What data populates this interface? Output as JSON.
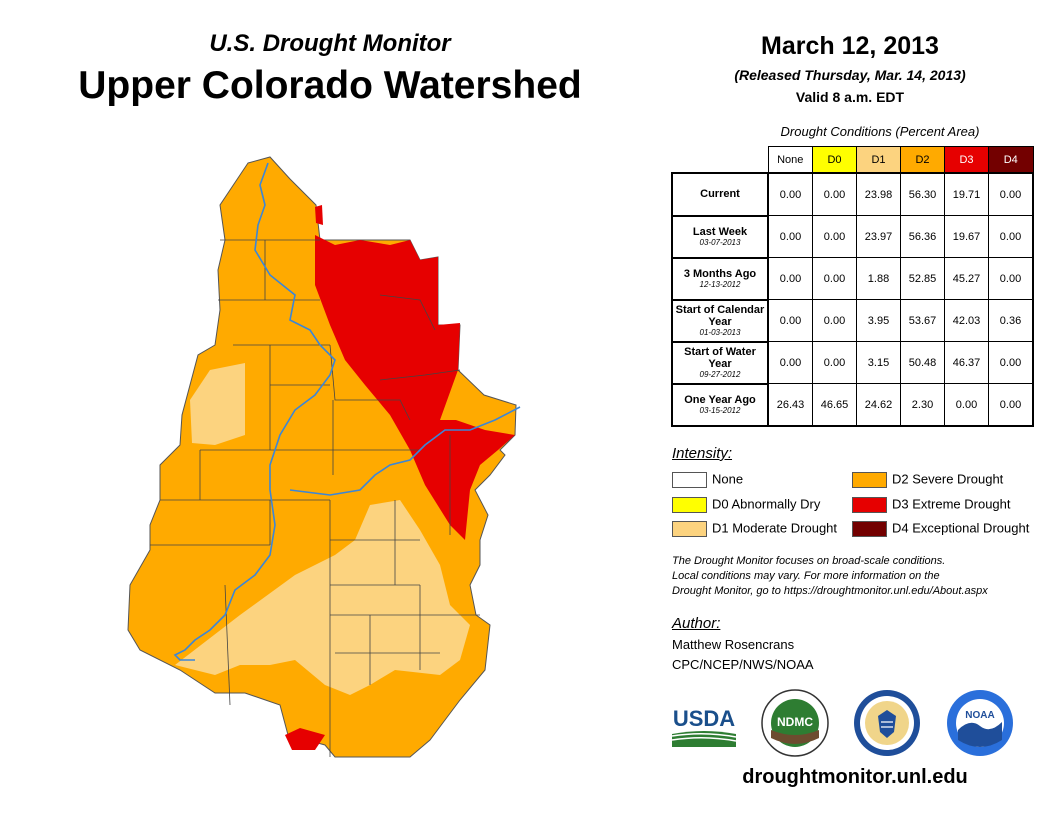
{
  "header": {
    "subtitle": "U.S. Drought Monitor",
    "title": "Upper Colorado Watershed"
  },
  "map_info": {
    "date": "March 12, 2013",
    "released": "(Released Thursday, Mar. 14, 2013)",
    "valid": "Valid 8 a.m. EDT"
  },
  "conditions": {
    "caption": "Drought Conditions (Percent Area)",
    "columns": [
      {
        "label": "None",
        "color": "#ffffff",
        "text_color": "#000000"
      },
      {
        "label": "D0",
        "color": "#ffff00",
        "text_color": "#000000"
      },
      {
        "label": "D1",
        "color": "#fcd37f",
        "text_color": "#000000"
      },
      {
        "label": "D2",
        "color": "#ffaa00",
        "text_color": "#000000"
      },
      {
        "label": "D3",
        "color": "#e60000",
        "text_color": "#ffffff"
      },
      {
        "label": "D4",
        "color": "#730000",
        "text_color": "#ffffff"
      }
    ],
    "rows": [
      {
        "label": "Current",
        "date": "",
        "values": [
          "0.00",
          "0.00",
          "23.98",
          "56.30",
          "19.71",
          "0.00"
        ]
      },
      {
        "label": "Last Week",
        "date": "03-07-2013",
        "values": [
          "0.00",
          "0.00",
          "23.97",
          "56.36",
          "19.67",
          "0.00"
        ]
      },
      {
        "label": "3 Months Ago",
        "date": "12-13-2012",
        "values": [
          "0.00",
          "0.00",
          "1.88",
          "52.85",
          "45.27",
          "0.00"
        ]
      },
      {
        "label": "Start of Calendar Year",
        "date": "01-03-2013",
        "values": [
          "0.00",
          "0.00",
          "3.95",
          "53.67",
          "42.03",
          "0.36"
        ]
      },
      {
        "label": "Start of Water Year",
        "date": "09-27-2012",
        "values": [
          "0.00",
          "0.00",
          "3.15",
          "50.48",
          "46.37",
          "0.00"
        ]
      },
      {
        "label": "One Year Ago",
        "date": "03-15-2012",
        "values": [
          "26.43",
          "46.65",
          "24.62",
          "2.30",
          "0.00",
          "0.00"
        ]
      }
    ]
  },
  "legend": {
    "title": "Intensity:",
    "items": [
      {
        "label": "None",
        "color": "#ffffff"
      },
      {
        "label": "D0 Abnormally Dry",
        "color": "#ffff00"
      },
      {
        "label": "D1 Moderate Drought",
        "color": "#fcd37f"
      },
      {
        "label": "D2 Severe Drought",
        "color": "#ffaa00"
      },
      {
        "label": "D3 Extreme Drought",
        "color": "#e60000"
      },
      {
        "label": "D4 Exceptional Drought",
        "color": "#730000"
      }
    ]
  },
  "disclaimer": [
    "The Drought Monitor focuses on broad-scale conditions.",
    "Local conditions may vary. For more information on the",
    "Drought Monitor, go to https://droughtmonitor.unl.edu/About.aspx"
  ],
  "author": {
    "title": "Author:",
    "name": "Matthew Rosencrans",
    "org": "CPC/NCEP/NWS/NOAA"
  },
  "logos": {
    "usda": "USDA",
    "ndmc": "NDMC",
    "noaa": "NOAA"
  },
  "footer_url": "droughtmonitor.unl.edu"
}
